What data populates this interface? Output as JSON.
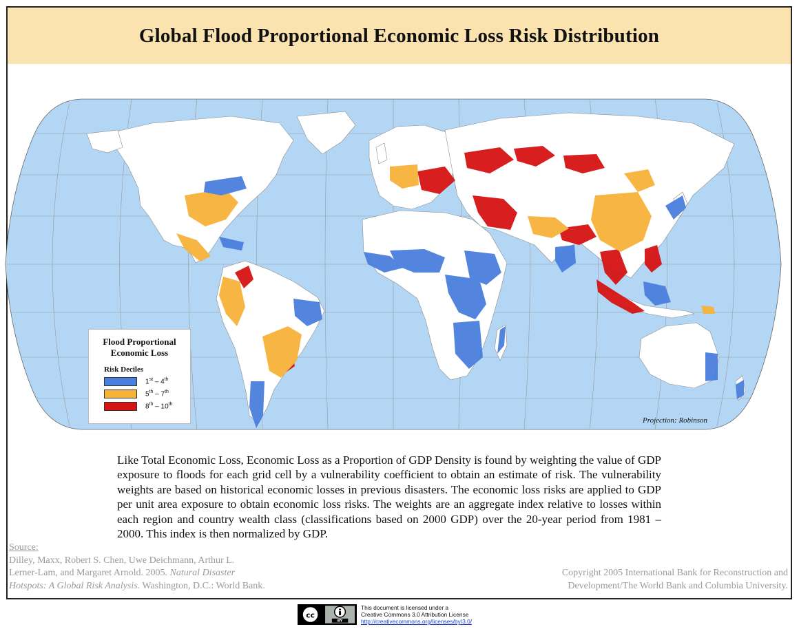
{
  "title": "Global Flood Proportional Economic Loss Risk Distribution",
  "map": {
    "colors": {
      "ocean": "#b2d6f4",
      "land": "#ffffff",
      "border": "#8c8c8c",
      "graticule": "#9a9a9a",
      "decile_low": "#4a7fdd",
      "decile_mid": "#f7b23a",
      "decile_high": "#d61414"
    },
    "projection_label": "Projection: Robinson"
  },
  "legend": {
    "title_line1": "Flood Proportional",
    "title_line2": "Economic Loss",
    "subtitle": "Risk Deciles",
    "items": [
      {
        "from": "1",
        "from_sup": "st",
        "to": "4",
        "to_sup": "th",
        "color": "#4a7fdd"
      },
      {
        "from": "5",
        "from_sup": "th",
        "to": "7",
        "to_sup": "th",
        "color": "#f7b23a"
      },
      {
        "from": "8",
        "from_sup": "th",
        "to": "10",
        "to_sup": "th",
        "color": "#d61414"
      }
    ],
    "dash": " – "
  },
  "description": "Like Total Economic Loss, Economic Loss as a Proportion of GDP Density is found by weighting the value of GDP exposure to floods for each grid cell by a vulnerability coefficient to obtain an estimate of risk. The vulnerability weights are based on historical economic losses in previous disasters. The economic loss risks are applied to GDP per unit area exposure to obtain economic loss risks. The weights are an aggregate index relative to losses within each region and country wealth class (classifications based on 2000 GDP) over the 20-year period from 1981 – 2000. This index is then normalized by GDP.",
  "source": {
    "label": "Source:",
    "line1": "Dilley, Maxx, Robert S. Chen, Uwe Deichmann, Arthur L.",
    "line2a": "Lerner-Lam, and Margaret Arnold. 2005. ",
    "line2b": "Natural Disaster",
    "line3a": "Hotspots: A Global Risk Analysis.",
    "line3b": " Washington, D.C.: World Bank."
  },
  "copyright": {
    "line1": "Copyright 2005 International Bank for Reconstruction and",
    "line2": "Development/The World Bank and Columbia University."
  },
  "license": {
    "badge_cc": "cc",
    "badge_by": "BY",
    "line1": "This document is licensed under a",
    "line2": "Creative Commons 3.0 Attribution License",
    "url": "http://creativecommons.org/licenses/by/3.0/"
  }
}
